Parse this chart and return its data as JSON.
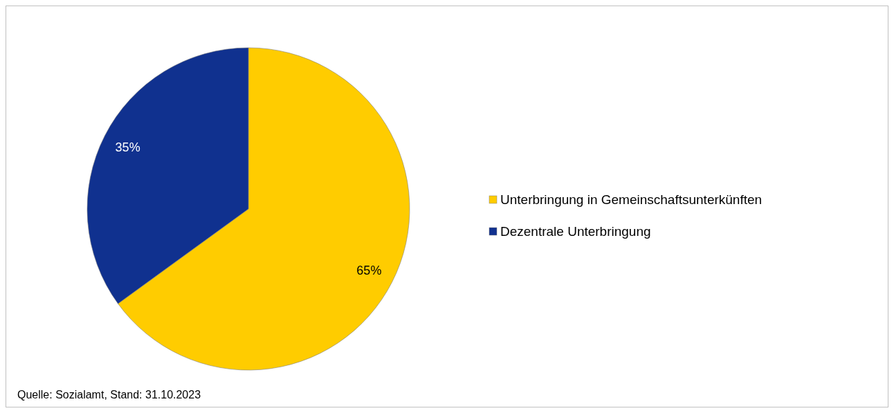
{
  "chart_data": {
    "type": "pie",
    "categories": [
      "Unterbringung in Gemeinschaftsunterkünften",
      "Dezentrale Unterbringung"
    ],
    "values": [
      65,
      35
    ],
    "colors": [
      "#ffcc00",
      "#10318f"
    ],
    "value_labels": [
      "65%",
      "35%"
    ],
    "legend": "right",
    "annotations": [
      "Quelle: Sozialamt, Stand: 31.10.2023"
    ]
  }
}
